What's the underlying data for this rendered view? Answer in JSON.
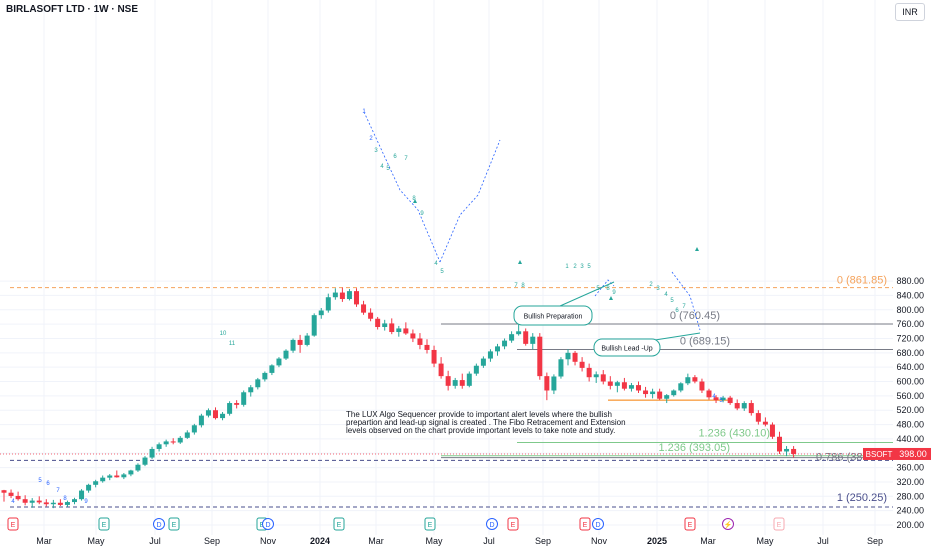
{
  "header": {
    "symbol_title": "BIRLASOFT LTD · 1W · NSE",
    "currency": "INR"
  },
  "note": "The LUX Algo Sequencer provide to important alert levels where the bullish prepartion and lead-up signal is created . The Fibo Retracement and Extension levels observed on the chart provide important levels to take note and study.",
  "colors": {
    "up": "#26a69a",
    "down": "#f23645",
    "accent_orange": "#f5a35c",
    "fib_gray": "#787b86",
    "fib_green": "#7fc98b",
    "dashed_blue": "#4a4f8c",
    "seq_blue": "#2962ff",
    "seq_teal": "#26a69a"
  },
  "annotations": {
    "bullish_preparation": "Bullish Preparation",
    "bullish_lead_up": "Bullish Lead -Up"
  },
  "chart_data": {
    "type": "candlestick",
    "x_ticks": [
      "Mar",
      "May",
      "Jul",
      "Sep",
      "Nov",
      "2024",
      "Mar",
      "May",
      "Jul",
      "Sep",
      "Nov",
      "2025",
      "Mar",
      "May",
      "Jul",
      "Sep"
    ],
    "y_ticks": [
      880,
      840,
      800,
      760,
      720,
      680,
      640,
      600,
      560,
      520,
      480,
      440,
      400,
      360,
      320,
      280,
      240,
      200
    ],
    "ylim": [
      200,
      885
    ],
    "price_label": {
      "ticker": "BSOFT",
      "value": "398.00"
    },
    "levels": [
      {
        "label": "0 (861.85)",
        "value": 861.85
      },
      {
        "label": "0 (760.45)",
        "value": 760.45
      },
      {
        "label": "0 (689.15)",
        "value": 689.15
      },
      {
        "label": "1.236 (430.10)",
        "value": 430.1
      },
      {
        "label": "1.236 (393.05)",
        "value": 393.05
      },
      {
        "label": "0.786 (38",
        "value": 388
      },
      {
        "label": "1 (250.25)",
        "value": 250.25
      }
    ],
    "candles": [
      [
        297,
        298,
        265,
        290
      ],
      [
        290,
        299,
        275,
        281
      ],
      [
        281,
        293,
        268,
        272
      ],
      [
        272,
        283,
        255,
        262
      ],
      [
        262,
        275,
        248,
        268
      ],
      [
        268,
        280,
        258,
        263
      ],
      [
        263,
        272,
        252,
        258
      ],
      [
        258,
        270,
        247,
        262
      ],
      [
        262,
        272,
        253,
        256
      ],
      [
        256,
        268,
        250,
        264
      ],
      [
        264,
        276,
        258,
        272
      ],
      [
        272,
        300,
        268,
        296
      ],
      [
        296,
        315,
        290,
        312
      ],
      [
        312,
        326,
        305,
        322
      ],
      [
        322,
        338,
        318,
        332
      ],
      [
        332,
        342,
        325,
        338
      ],
      [
        338,
        352,
        332,
        333
      ],
      [
        333,
        345,
        328,
        341
      ],
      [
        341,
        354,
        336,
        352
      ],
      [
        352,
        372,
        348,
        368
      ],
      [
        368,
        392,
        364,
        388
      ],
      [
        388,
        418,
        384,
        412
      ],
      [
        412,
        430,
        405,
        425
      ],
      [
        425,
        438,
        418,
        433
      ],
      [
        433,
        442,
        425,
        430
      ],
      [
        430,
        448,
        426,
        443
      ],
      [
        443,
        464,
        440,
        458
      ],
      [
        458,
        482,
        452,
        478
      ],
      [
        478,
        510,
        472,
        505
      ],
      [
        505,
        525,
        500,
        520
      ],
      [
        520,
        528,
        494,
        498
      ],
      [
        498,
        515,
        492,
        510
      ],
      [
        510,
        545,
        505,
        540
      ],
      [
        540,
        548,
        525,
        535
      ],
      [
        535,
        575,
        530,
        570
      ],
      [
        570,
        590,
        558,
        584
      ],
      [
        584,
        610,
        578,
        606
      ],
      [
        606,
        628,
        600,
        624
      ],
      [
        624,
        648,
        618,
        645
      ],
      [
        645,
        668,
        640,
        664
      ],
      [
        664,
        690,
        660,
        686
      ],
      [
        686,
        720,
        680,
        716
      ],
      [
        716,
        730,
        680,
        702
      ],
      [
        702,
        735,
        698,
        728
      ],
      [
        728,
        790,
        725,
        785
      ],
      [
        785,
        805,
        775,
        798
      ],
      [
        798,
        845,
        792,
        835
      ],
      [
        835,
        860,
        828,
        848
      ],
      [
        848,
        862,
        822,
        830
      ],
      [
        830,
        858,
        826,
        852
      ],
      [
        852,
        860,
        808,
        815
      ],
      [
        815,
        825,
        786,
        792
      ],
      [
        792,
        804,
        768,
        775
      ],
      [
        775,
        780,
        745,
        752
      ],
      [
        752,
        772,
        742,
        762
      ],
      [
        762,
        776,
        732,
        738
      ],
      [
        738,
        755,
        725,
        748
      ],
      [
        748,
        765,
        730,
        734
      ],
      [
        734,
        745,
        710,
        720
      ],
      [
        720,
        735,
        690,
        702
      ],
      [
        702,
        718,
        678,
        688
      ],
      [
        688,
        700,
        640,
        650
      ],
      [
        650,
        668,
        608,
        615
      ],
      [
        615,
        630,
        575,
        588
      ],
      [
        588,
        610,
        580,
        604
      ],
      [
        604,
        622,
        580,
        588
      ],
      [
        588,
        628,
        584,
        622
      ],
      [
        622,
        650,
        616,
        644
      ],
      [
        644,
        670,
        638,
        664
      ],
      [
        664,
        690,
        655,
        684
      ],
      [
        684,
        705,
        672,
        698
      ],
      [
        698,
        720,
        690,
        714
      ],
      [
        714,
        740,
        708,
        732
      ],
      [
        732,
        762,
        728,
        740
      ],
      [
        740,
        748,
        700,
        705
      ],
      [
        705,
        735,
        690,
        725
      ],
      [
        725,
        735,
        605,
        615
      ],
      [
        615,
        625,
        548,
        575
      ],
      [
        575,
        620,
        565,
        614
      ],
      [
        614,
        668,
        608,
        662
      ],
      [
        662,
        690,
        645,
        680
      ],
      [
        680,
        685,
        645,
        655
      ],
      [
        655,
        668,
        628,
        638
      ],
      [
        638,
        650,
        600,
        612
      ],
      [
        612,
        628,
        596,
        620
      ],
      [
        620,
        632,
        592,
        600
      ],
      [
        600,
        615,
        578,
        588
      ],
      [
        588,
        602,
        570,
        598
      ],
      [
        598,
        610,
        575,
        580
      ],
      [
        580,
        596,
        572,
        590
      ],
      [
        590,
        600,
        568,
        575
      ],
      [
        575,
        585,
        555,
        565
      ],
      [
        565,
        580,
        553,
        572
      ],
      [
        572,
        580,
        548,
        552
      ],
      [
        552,
        565,
        540,
        562
      ],
      [
        562,
        578,
        558,
        575
      ],
      [
        575,
        598,
        570,
        595
      ],
      [
        595,
        622,
        590,
        612
      ],
      [
        612,
        618,
        595,
        600
      ],
      [
        600,
        608,
        568,
        575
      ],
      [
        575,
        580,
        550,
        556
      ],
      [
        556,
        562,
        540,
        548
      ],
      [
        548,
        560,
        542,
        555
      ],
      [
        555,
        560,
        535,
        540
      ],
      [
        540,
        550,
        520,
        525
      ],
      [
        525,
        545,
        518,
        540
      ],
      [
        540,
        548,
        505,
        512
      ],
      [
        512,
        520,
        480,
        488
      ],
      [
        488,
        500,
        475,
        480
      ],
      [
        480,
        486,
        440,
        446
      ],
      [
        446,
        460,
        398,
        405
      ],
      [
        405,
        420,
        392,
        412
      ],
      [
        412,
        420,
        388,
        398
      ]
    ]
  }
}
